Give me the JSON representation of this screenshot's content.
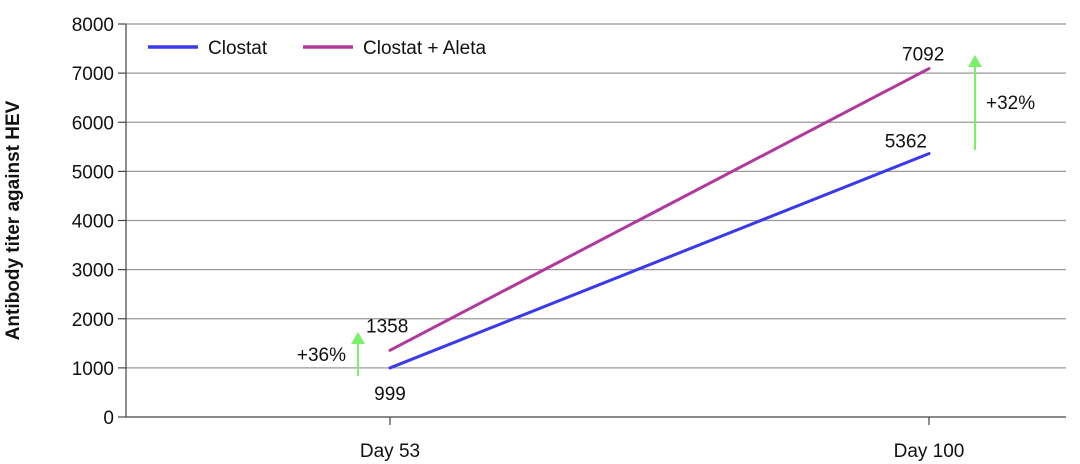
{
  "chart_data": {
    "type": "line",
    "title": "",
    "xlabel": "",
    "ylabel": "Antibody titer against HEV",
    "categories": [
      "Day 53",
      "Day 100"
    ],
    "ylim": [
      0,
      8000
    ],
    "yticks": [
      0,
      1000,
      2000,
      3000,
      4000,
      5000,
      6000,
      7000,
      8000
    ],
    "grid": true,
    "legend_position": "top-left",
    "series": [
      {
        "name": "Clostat",
        "values": [
          999,
          5362
        ],
        "color": "#3a3aea",
        "labels": [
          "999",
          "5362"
        ]
      },
      {
        "name": "Clostat + Aleta",
        "values": [
          1358,
          7092
        ],
        "color": "#b0399e",
        "labels": [
          "1358",
          "7092"
        ]
      }
    ],
    "annotations": [
      {
        "text": "+36%",
        "category": "Day 53",
        "from": 999,
        "to": 1358,
        "color": "#7cf06a"
      },
      {
        "text": "+32%",
        "category": "Day 100",
        "from": 5362,
        "to": 7092,
        "color": "#7cf06a"
      }
    ]
  }
}
